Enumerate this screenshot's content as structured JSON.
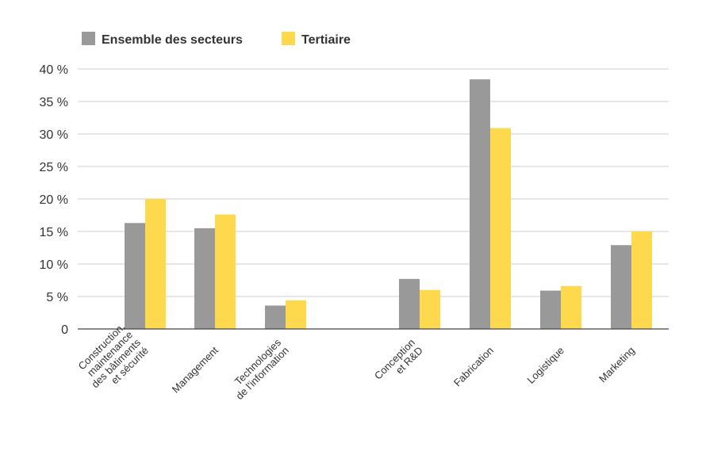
{
  "chart_data": {
    "type": "bar",
    "title": "",
    "xlabel": "",
    "ylabel": "",
    "ylim": [
      0,
      40
    ],
    "yticks": [
      0,
      5,
      10,
      15,
      20,
      25,
      30,
      35,
      40
    ],
    "ytick_labels": [
      "0",
      "5 %",
      "10 %",
      "15 %",
      "20 %",
      "25 %",
      "30 %",
      "35 %",
      "40 %"
    ],
    "grid": true,
    "legend_position": "top-left",
    "categories": [
      [
        "Construction,",
        "maintenance",
        "des bâtiments",
        "et sécurité"
      ],
      [
        "Management"
      ],
      [
        "Technologies",
        "de l'information"
      ],
      [
        "Conception",
        "et R&D"
      ],
      [
        "Fabrication"
      ],
      [
        "Logistique"
      ],
      [
        "Marketing"
      ]
    ],
    "series": [
      {
        "name": "Ensemble des secteurs",
        "color": "#999999",
        "values": [
          16.3,
          15.5,
          3.6,
          7.7,
          38.4,
          5.9,
          12.9
        ]
      },
      {
        "name": "Tertiaire",
        "color": "#FFD94D",
        "values": [
          20.0,
          17.6,
          4.4,
          6.0,
          30.9,
          6.6,
          15.0
        ]
      }
    ]
  }
}
